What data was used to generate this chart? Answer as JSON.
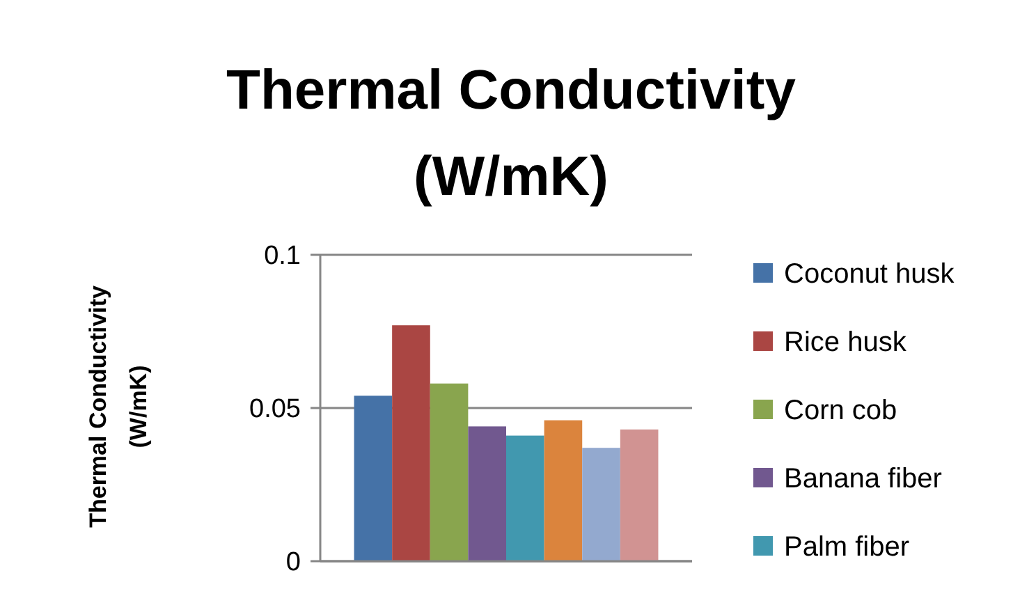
{
  "chart_data": {
    "type": "bar",
    "title": "Thermal Conductivity (W/mK)",
    "ylabel": "Thermal Conductivity (W/mK)",
    "categories": [
      null
    ],
    "series": [
      {
        "name": "Coconut husk",
        "color": "#4572a7",
        "values": [
          0.054
        ]
      },
      {
        "name": "Rice husk",
        "color": "#aa4643",
        "values": [
          0.077
        ]
      },
      {
        "name": "Corn cob",
        "color": "#89a54e",
        "values": [
          0.058
        ]
      },
      {
        "name": "Banana fiber",
        "color": "#71588f",
        "values": [
          0.044
        ]
      },
      {
        "name": "Palm fiber",
        "color": "#4198af",
        "values": [
          0.041
        ]
      },
      {
        "color": "#db843d",
        "values": [
          0.046
        ]
      },
      {
        "color": "#93a9cf",
        "values": [
          0.037
        ]
      },
      {
        "color": "#d19392",
        "values": [
          0.043
        ]
      }
    ],
    "ylim": [
      0,
      0.1
    ],
    "yticks": [
      0,
      0.05,
      0.1
    ],
    "grid": "y",
    "legend": "right"
  }
}
